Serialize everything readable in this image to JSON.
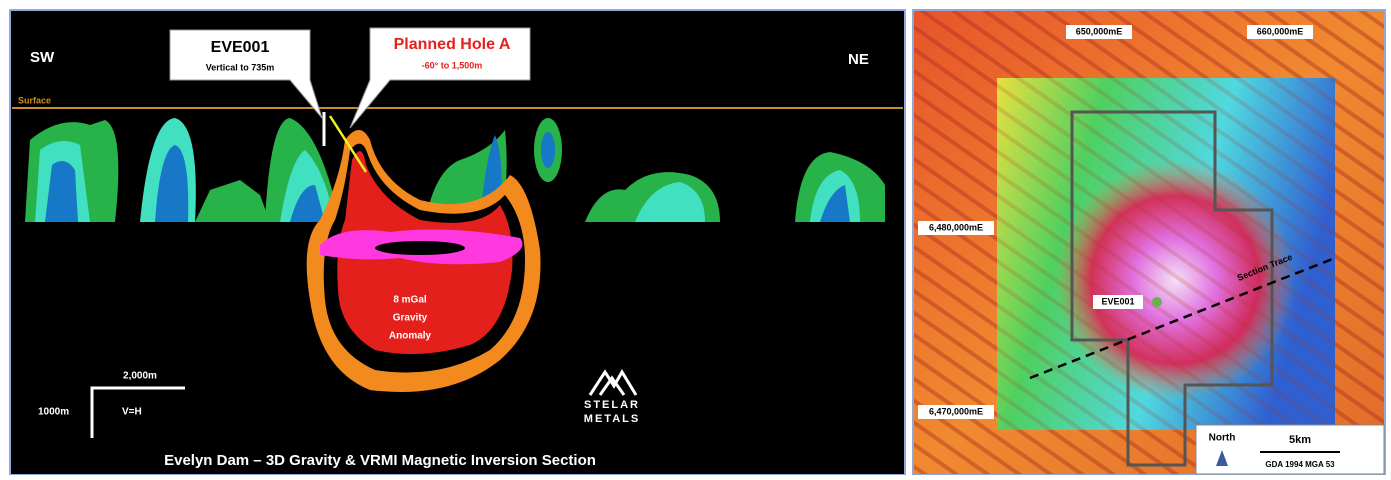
{
  "section": {
    "sw": "SW",
    "ne": "NE",
    "surface": "Surface",
    "callout_eve": {
      "title": "EVE001",
      "detail": "Vertical to 735m"
    },
    "callout_planned": {
      "title": "Planned Hole A",
      "detail": "-60° to 1,500m"
    },
    "anomaly": [
      "8 mGal",
      "Gravity",
      "Anomaly"
    ],
    "scale": {
      "horizontal": "2,000m",
      "vertical": "1000m",
      "ratio": "V=H"
    },
    "logo": [
      "STELAR",
      "METALS"
    ],
    "caption": "Evelyn Dam – 3D Gravity & VRMI Magnetic Inversion Section"
  },
  "map": {
    "easting_labels": [
      "650,000mE",
      "660,000mE"
    ],
    "northing_labels": [
      "6,480,000mE",
      "6,470,000mE"
    ],
    "section_trace": "Section Trace",
    "hole": "EVE001",
    "north": "North",
    "scale": "5km",
    "datum": "GDA 1994 MGA 53"
  }
}
